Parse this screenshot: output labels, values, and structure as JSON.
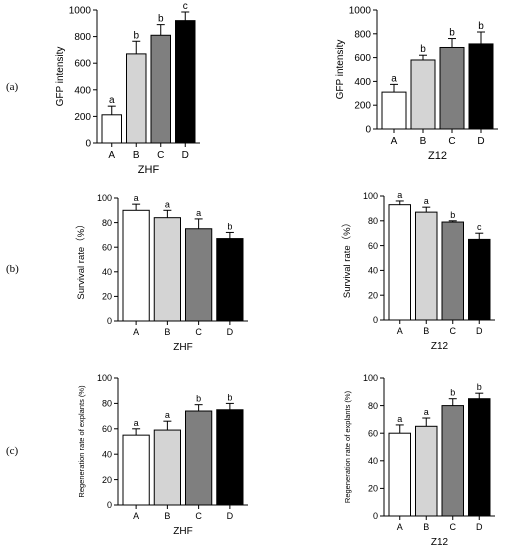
{
  "panel_labels": [
    "(a)",
    "(b)",
    "(c)"
  ],
  "chart_data": [
    {
      "type": "bar",
      "row": 0,
      "col": 0,
      "categories": [
        "A",
        "B",
        "C",
        "D"
      ],
      "values": [
        212,
        670,
        810,
        920
      ],
      "errors": [
        65,
        95,
        80,
        65
      ],
      "letters": [
        "a",
        "b",
        "b",
        "c"
      ],
      "xlabel": "ZHF",
      "ylabel": "GFP intensity",
      "ylim": [
        0,
        1000
      ],
      "yticks": [
        0,
        200,
        400,
        600,
        800,
        1000
      ],
      "colors": [
        "#ffffff",
        "#d4d4d4",
        "#7f7f7f",
        "#000000"
      ]
    },
    {
      "type": "bar",
      "row": 0,
      "col": 1,
      "categories": [
        "A",
        "B",
        "C",
        "D"
      ],
      "values": [
        310,
        580,
        685,
        715
      ],
      "errors": [
        65,
        40,
        75,
        100
      ],
      "letters": [
        "a",
        "b",
        "b",
        "b"
      ],
      "xlabel": "Z12",
      "ylabel": "GFP intensity",
      "ylim": [
        0,
        1000
      ],
      "yticks": [
        0,
        200,
        400,
        600,
        800,
        1000
      ],
      "colors": [
        "#ffffff",
        "#d4d4d4",
        "#7f7f7f",
        "#000000"
      ]
    },
    {
      "type": "bar",
      "row": 1,
      "col": 0,
      "categories": [
        "A",
        "B",
        "C",
        "D"
      ],
      "values": [
        90,
        84,
        75,
        67
      ],
      "errors": [
        5,
        6,
        8,
        5
      ],
      "letters": [
        "a",
        "a",
        "a",
        "b"
      ],
      "xlabel": "ZHF",
      "ylabel": "Survival rate（%）",
      "ylim": [
        0,
        100
      ],
      "yticks": [
        0,
        20,
        40,
        60,
        80,
        100
      ],
      "colors": [
        "#ffffff",
        "#d4d4d4",
        "#7f7f7f",
        "#000000"
      ]
    },
    {
      "type": "bar",
      "row": 1,
      "col": 1,
      "categories": [
        "A",
        "B",
        "C",
        "D"
      ],
      "values": [
        93,
        87,
        79,
        65
      ],
      "errors": [
        3,
        4,
        1,
        5
      ],
      "letters": [
        "a",
        "a",
        "b",
        "c"
      ],
      "xlabel": "Z12",
      "ylabel": "Survival rate（%）",
      "ylim": [
        0,
        100
      ],
      "yticks": [
        0,
        20,
        40,
        60,
        80,
        100
      ],
      "colors": [
        "#ffffff",
        "#d4d4d4",
        "#7f7f7f",
        "#000000"
      ]
    },
    {
      "type": "bar",
      "row": 2,
      "col": 0,
      "categories": [
        "A",
        "B",
        "C",
        "D"
      ],
      "values": [
        55,
        59,
        74,
        75
      ],
      "errors": [
        5,
        7,
        5,
        5
      ],
      "letters": [
        "a",
        "a",
        "b",
        "b"
      ],
      "xlabel": "ZHF",
      "ylabel": "Regeneration rate of explants (%)",
      "ylim": [
        0,
        100
      ],
      "yticks": [
        0,
        20,
        40,
        60,
        80,
        100
      ],
      "colors": [
        "#ffffff",
        "#d4d4d4",
        "#7f7f7f",
        "#000000"
      ]
    },
    {
      "type": "bar",
      "row": 2,
      "col": 1,
      "categories": [
        "A",
        "B",
        "C",
        "D"
      ],
      "values": [
        60,
        65,
        80,
        85
      ],
      "errors": [
        6,
        6,
        5,
        4
      ],
      "letters": [
        "a",
        "a",
        "b",
        "b"
      ],
      "xlabel": "Z12",
      "ylabel": "Regeneration rate of explants (%)",
      "ylim": [
        0,
        100
      ],
      "yticks": [
        0,
        20,
        40,
        60,
        80,
        100
      ],
      "colors": [
        "#ffffff",
        "#d4d4d4",
        "#7f7f7f",
        "#000000"
      ]
    }
  ]
}
